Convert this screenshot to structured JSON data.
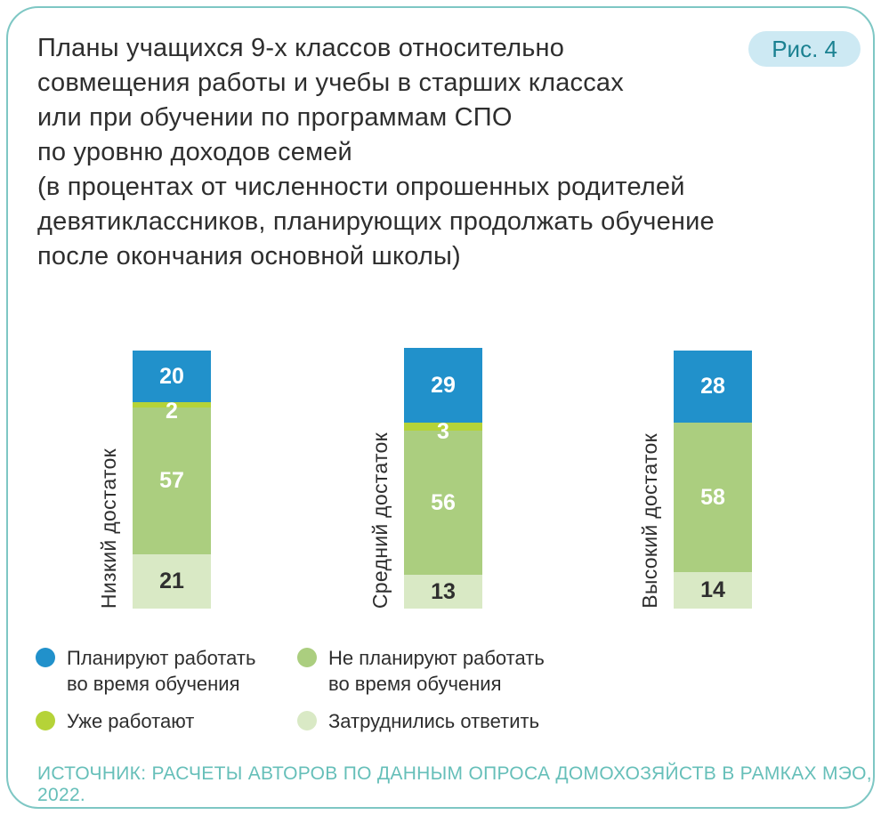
{
  "header": {
    "badge": "Рис. 4",
    "title": "Планы учащихся 9-х классов относительно\nсовмещения работы и учебы в старших классах\nили при обучении по программам СПО\nпо уровню доходов семей\n(в процентах от численности опрошенных родителей\nдевятиклассников, планирующих продолжать обучение\nпосле окончания основной школы)"
  },
  "colors": {
    "plan_to_work": "#2191cb",
    "already_work": "#b5d338",
    "no_plan_to_work": "#abce7f",
    "undecided": "#d9e9c5",
    "card_border": "#7ec7c4",
    "badge_bg": "#cde9f3",
    "badge_text": "#1a8191",
    "source_text": "#66bfb9",
    "dark_text": "#2e2e2e"
  },
  "chart_data": {
    "type": "bar",
    "stacked": true,
    "orientation": "vertical",
    "unit": "percent of surveyed parents",
    "categories": [
      "Низкий достаток",
      "Средний достаток",
      "Высокий достаток"
    ],
    "series": [
      {
        "name": "Планируют работать во время обучения",
        "color": "#2191cb",
        "value_color": "#ffffff",
        "overlap_label": false,
        "values": [
          20,
          29,
          28
        ]
      },
      {
        "name": "Уже работают",
        "color": "#b5d338",
        "value_color": "#ffffff",
        "overlap_label": true,
        "values": [
          2,
          3,
          0
        ]
      },
      {
        "name": "Не планируют работать во время обучения",
        "color": "#abce7f",
        "value_color": "#ffffff",
        "overlap_label": false,
        "values": [
          57,
          56,
          58
        ]
      },
      {
        "name": "Затруднились ответить",
        "color": "#d9e9c5",
        "value_color": "#2f2f2f",
        "overlap_label": false,
        "values": [
          21,
          13,
          14
        ]
      }
    ],
    "legend_position": "bottom-left"
  },
  "legend": {
    "items": [
      {
        "label": "Планируют работать\nво время обучения",
        "color": "#2191cb"
      },
      {
        "label": "Не планируют работать\nво время обучения",
        "color": "#abce7f"
      },
      {
        "label": "Уже работают",
        "color": "#b5d338"
      },
      {
        "label": "Затруднились ответить",
        "color": "#d9e9c5"
      }
    ]
  },
  "footer": {
    "source": "ИСТОЧНИК: РАСЧЕТЫ АВТОРОВ ПО ДАННЫМ ОПРОСА ДОМОХОЗЯЙСТВ В РАМКАХ МЭО, 2022."
  }
}
